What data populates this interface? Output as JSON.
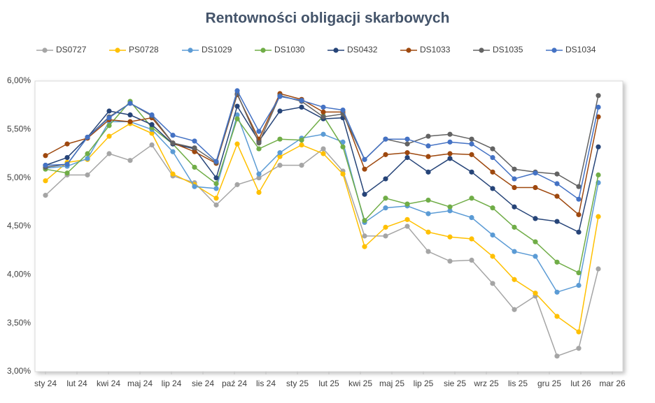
{
  "chart_data": {
    "type": "line",
    "title": "Rentowności obligacji skarbowych",
    "x": [
      0,
      31,
      60,
      91,
      121,
      152,
      182,
      213,
      244,
      274,
      305,
      335,
      366,
      397,
      425,
      456,
      486,
      517,
      547,
      578,
      609,
      639,
      670,
      700,
      731,
      762,
      790
    ],
    "xlim": [
      -15,
      825
    ],
    "xticks": [
      {
        "value": 0,
        "label": "sty 24"
      },
      {
        "value": 45,
        "label": "lut 24"
      },
      {
        "value": 90,
        "label": "kwi 24"
      },
      {
        "value": 135,
        "label": "maj 24"
      },
      {
        "value": 180,
        "label": "lip 24"
      },
      {
        "value": 225,
        "label": "sie 24"
      },
      {
        "value": 270,
        "label": "paź 24"
      },
      {
        "value": 315,
        "label": "lis 24"
      },
      {
        "value": 360,
        "label": "sty 25"
      },
      {
        "value": 405,
        "label": "lut 25"
      },
      {
        "value": 450,
        "label": "kwi 25"
      },
      {
        "value": 495,
        "label": "maj 25"
      },
      {
        "value": 540,
        "label": "lip 25"
      },
      {
        "value": 585,
        "label": "sie 25"
      },
      {
        "value": 630,
        "label": "wrz 25"
      },
      {
        "value": 675,
        "label": "lis 25"
      },
      {
        "value": 720,
        "label": "gru 25"
      },
      {
        "value": 765,
        "label": "lut 26"
      },
      {
        "value": 810,
        "label": "mar 26"
      }
    ],
    "ylim": [
      3,
      6
    ],
    "yticks": [
      {
        "value": 3,
        "label": "3,00%"
      },
      {
        "value": 3.5,
        "label": "3,50%"
      },
      {
        "value": 4,
        "label": "4,00%"
      },
      {
        "value": 4.5,
        "label": "4,50%"
      },
      {
        "value": 5,
        "label": "5,00%"
      },
      {
        "value": 5.5,
        "label": "5,50%"
      },
      {
        "value": 6,
        "label": "6,00%"
      }
    ],
    "grid": false,
    "legend": "top",
    "series": [
      {
        "name": "DS0727",
        "color": "#a5a5a5",
        "values": [
          4.82,
          5.03,
          5.03,
          5.25,
          5.18,
          5.34,
          5.02,
          4.95,
          4.72,
          4.93,
          5.0,
          5.13,
          5.13,
          5.3,
          5.07,
          4.4,
          4.4,
          4.5,
          4.24,
          4.14,
          4.15,
          3.91,
          3.64,
          3.78,
          3.16,
          3.24,
          4.06
        ]
      },
      {
        "name": "PS0728",
        "color": "#ffc000",
        "values": [
          4.97,
          5.16,
          5.19,
          5.43,
          5.56,
          5.46,
          5.04,
          4.93,
          4.79,
          5.35,
          4.85,
          5.22,
          5.34,
          5.25,
          5.04,
          4.29,
          4.49,
          4.57,
          4.44,
          4.39,
          4.37,
          4.19,
          3.95,
          3.81,
          3.57,
          3.41,
          4.6
        ]
      },
      {
        "name": "DS1029",
        "color": "#5b9bd5",
        "values": [
          5.1,
          5.12,
          5.2,
          5.58,
          5.58,
          5.5,
          5.27,
          4.91,
          4.89,
          5.65,
          5.04,
          5.26,
          5.41,
          5.45,
          5.37,
          4.54,
          4.69,
          4.71,
          4.63,
          4.66,
          4.59,
          4.41,
          4.24,
          4.19,
          3.82,
          3.89,
          4.95
        ]
      },
      {
        "name": "DS1030",
        "color": "#70ad47",
        "values": [
          5.09,
          5.05,
          5.25,
          5.54,
          5.79,
          5.52,
          5.35,
          5.11,
          4.94,
          5.61,
          5.3,
          5.4,
          5.39,
          5.64,
          5.32,
          4.56,
          4.79,
          4.73,
          4.77,
          4.7,
          4.79,
          4.69,
          4.49,
          4.34,
          4.13,
          4.02,
          5.03
        ]
      },
      {
        "name": "DS0432",
        "color": "#264478",
        "values": [
          5.13,
          5.21,
          5.42,
          5.69,
          5.65,
          5.55,
          5.35,
          5.3,
          5.0,
          5.74,
          5.38,
          5.69,
          5.73,
          5.61,
          5.62,
          4.83,
          4.99,
          5.21,
          5.06,
          5.2,
          5.06,
          4.89,
          4.7,
          4.58,
          4.55,
          4.44,
          5.32
        ]
      },
      {
        "name": "DS1033",
        "color": "#9e480e",
        "values": [
          5.23,
          5.35,
          5.41,
          5.6,
          5.58,
          5.62,
          5.36,
          5.27,
          5.15,
          5.86,
          5.4,
          5.87,
          5.81,
          5.68,
          5.68,
          5.09,
          5.24,
          5.26,
          5.22,
          5.25,
          5.24,
          5.06,
          4.9,
          4.9,
          4.81,
          4.62,
          5.63
        ]
      },
      {
        "name": "DS1035",
        "color": "#636363",
        "values": [
          5.11,
          5.14,
          5.42,
          5.63,
          5.77,
          5.64,
          5.36,
          5.31,
          5.16,
          5.87,
          5.36,
          5.85,
          5.79,
          5.63,
          5.66,
          5.19,
          5.4,
          5.35,
          5.43,
          5.45,
          5.4,
          5.3,
          5.09,
          5.06,
          5.04,
          4.91,
          5.85
        ]
      },
      {
        "name": "DS1034",
        "color": "#4472c4",
        "values": [
          5.13,
          5.14,
          5.42,
          5.62,
          5.77,
          5.65,
          5.44,
          5.38,
          5.17,
          5.9,
          5.48,
          5.84,
          5.8,
          5.73,
          5.7,
          5.19,
          5.4,
          5.4,
          5.33,
          5.37,
          5.35,
          5.21,
          4.99,
          5.05,
          4.94,
          4.78,
          5.73
        ]
      }
    ]
  }
}
